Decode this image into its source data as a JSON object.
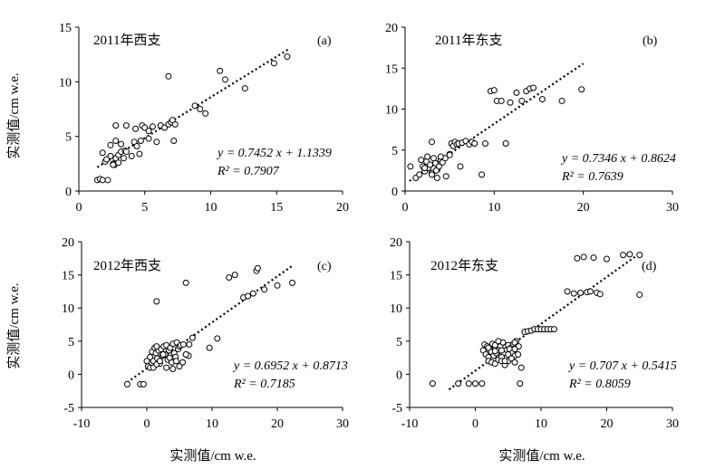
{
  "figure": {
    "ylabel": "实测值/cm w.e.",
    "xlabel": "实测值/cm w.e."
  },
  "chart_data": [
    {
      "type": "scatter",
      "panel": "(a)",
      "title": "2011年西支",
      "equation": "y = 0.7452 x + 1.1339",
      "r2_text": "R² = 0.7907",
      "slope": 0.7452,
      "intercept": 1.1339,
      "xlim": [
        0,
        20
      ],
      "ylim": [
        0,
        15
      ],
      "xticks": [
        0,
        5,
        10,
        15,
        20
      ],
      "yticks": [
        0,
        5,
        10,
        15
      ],
      "fit_x": [
        1.4,
        16
      ],
      "x": [
        1.4,
        1.6,
        1.8,
        2.2,
        1.8,
        2.0,
        2.4,
        2.6,
        2.8,
        3.0,
        3.2,
        3.4,
        2.7,
        3.0,
        2.6,
        3.5,
        2.4,
        2.8,
        3.2,
        3.6,
        4.2,
        4.4,
        4.6,
        4.0,
        4.7,
        4.3,
        4.8,
        5.0,
        5.3,
        5.6,
        5.9,
        6.2,
        6.5,
        6.8,
        7.0,
        7.2,
        7.3,
        2.8,
        3.6,
        5.3,
        6.8,
        7.1,
        8.8,
        9.2,
        9.6,
        10.7,
        11.1,
        12.6,
        14.8,
        15.8,
        2.1
      ],
      "y": [
        1.0,
        1.1,
        1.0,
        1.0,
        3.5,
        2.7,
        3.2,
        2.5,
        3.0,
        3.3,
        3.6,
        3.0,
        2.4,
        2.6,
        2.4,
        3.7,
        4.2,
        4.6,
        4.3,
        3.6,
        4.5,
        4.1,
        3.4,
        3.2,
        4.6,
        5.7,
        6.0,
        5.8,
        5.5,
        5.9,
        4.5,
        6.0,
        5.8,
        6.1,
        6.3,
        4.6,
        6.1,
        6.0,
        6.0,
        4.8,
        10.5,
        6.5,
        7.8,
        7.5,
        7.1,
        11.0,
        10.2,
        9.4,
        11.7,
        12.3,
        2.9
      ]
    },
    {
      "type": "scatter",
      "panel": "(b)",
      "title": "2011年东支",
      "equation": "y = 0.7346 x + 0.8624",
      "r2_text": "R² = 0.7639",
      "slope": 0.7346,
      "intercept": 0.8624,
      "xlim": [
        0,
        30
      ],
      "ylim": [
        0,
        20
      ],
      "xticks": [
        0,
        10,
        20,
        30
      ],
      "yticks": [
        0,
        5,
        10,
        15,
        20
      ],
      "fit_x": [
        0.5,
        20
      ],
      "x": [
        0.6,
        1.2,
        1.6,
        1.8,
        2.0,
        2.2,
        2.4,
        2.6,
        2.8,
        3.0,
        3.2,
        3.4,
        3.6,
        3.8,
        4.0,
        2.5,
        3.0,
        3.5,
        4.2,
        4.5,
        5.0,
        5.2,
        5.4,
        5.6,
        5.8,
        6.0,
        6.4,
        6.8,
        7.2,
        7.5,
        7.8,
        3.0,
        4.0,
        5.0,
        2.2,
        3.6,
        6.2,
        8.6,
        9.0,
        9.6,
        10.0,
        10.3,
        10.8,
        11.3,
        11.8,
        12.5,
        13.1,
        13.6,
        14.0,
        14.4,
        15.4,
        17.6,
        19.8,
        4.6
      ],
      "y": [
        3.0,
        1.6,
        2.0,
        3.8,
        3.0,
        2.4,
        3.6,
        2.8,
        3.2,
        2.2,
        4.0,
        3.4,
        2.6,
        3.0,
        3.8,
        4.2,
        2.0,
        2.5,
        3.5,
        4.0,
        4.5,
        5.8,
        5.5,
        6.0,
        5.7,
        5.8,
        5.9,
        6.1,
        5.7,
        6.0,
        5.8,
        6.0,
        4.2,
        4.4,
        2.8,
        1.6,
        3.0,
        2.0,
        5.8,
        12.2,
        12.3,
        11.0,
        11.0,
        5.8,
        10.8,
        12.0,
        11.0,
        12.2,
        12.5,
        12.6,
        11.2,
        11.0,
        12.4,
        1.8
      ]
    },
    {
      "type": "scatter",
      "panel": "(c)",
      "title": "2012年西支",
      "equation": "y = 0.6952 x + 0.8713",
      "r2_text": "R² = 0.7185",
      "slope": 0.6952,
      "intercept": 0.8713,
      "xlim": [
        -10,
        30
      ],
      "ylim": [
        -5,
        20
      ],
      "xticks": [
        -10,
        0,
        10,
        20,
        30
      ],
      "yticks": [
        -5,
        0,
        5,
        10,
        15,
        20
      ],
      "fit_x": [
        -3,
        22.5
      ],
      "x": [
        -3.0,
        -1.0,
        -0.5,
        0.0,
        0.2,
        0.5,
        0.8,
        1.0,
        1.2,
        1.4,
        1.6,
        1.8,
        2.0,
        2.2,
        2.4,
        2.6,
        2.8,
        3.0,
        3.2,
        3.4,
        3.6,
        3.8,
        4.0,
        4.2,
        4.4,
        4.6,
        4.8,
        5.0,
        5.2,
        5.6,
        6.0,
        6.4,
        7.0,
        0.5,
        1.0,
        1.5,
        2.0,
        3.0,
        4.0,
        5.0,
        6.0,
        1.5,
        2.5,
        3.5,
        4.5,
        5.5,
        6.5,
        1.5,
        6.0,
        9.6,
        10.8,
        12.6,
        13.5,
        14.8,
        15.5,
        16.3,
        16.8,
        17.0,
        18.0,
        20.0,
        22.3
      ],
      "y": [
        -1.5,
        -1.5,
        -1.5,
        2.0,
        1.2,
        2.6,
        3.4,
        2.0,
        4.0,
        3.2,
        2.4,
        3.6,
        1.6,
        3.8,
        2.8,
        4.2,
        3.0,
        4.4,
        2.2,
        3.6,
        4.0,
        1.8,
        4.6,
        3.2,
        2.6,
        4.8,
        3.8,
        4.2,
        4.4,
        4.5,
        3.0,
        2.8,
        5.5,
        1.0,
        1.0,
        1.5,
        2.0,
        1.0,
        0.8,
        1.2,
        3.0,
        4.2,
        3.0,
        2.5,
        2.0,
        1.8,
        4.5,
        11.0,
        13.8,
        4.0,
        5.4,
        14.6,
        15.0,
        11.6,
        11.8,
        12.2,
        15.6,
        16.0,
        12.8,
        13.4,
        13.8
      ]
    },
    {
      "type": "scatter",
      "panel": "(d)",
      "title": "2012年东支",
      "equation": "y = 0.707 x + 0.5415",
      "r2_text": "R² = 0.8059",
      "slope": 0.707,
      "intercept": 0.5415,
      "xlim": [
        -10,
        30
      ],
      "ylim": [
        -5,
        20
      ],
      "xticks": [
        -10,
        0,
        10,
        20,
        30
      ],
      "yticks": [
        -5,
        0,
        5,
        10,
        15,
        20
      ],
      "fit_x": [
        -4,
        25
      ],
      "x": [
        -6.5,
        -2.6,
        -1.0,
        0.0,
        1.0,
        1.4,
        1.8,
        2.2,
        2.6,
        3.0,
        3.4,
        3.8,
        4.2,
        4.6,
        5.0,
        5.4,
        5.8,
        6.2,
        6.6,
        1.2,
        1.6,
        2.0,
        2.4,
        2.8,
        3.2,
        3.6,
        4.0,
        4.4,
        4.8,
        5.2,
        5.6,
        6.0,
        2.0,
        2.5,
        3.0,
        3.5,
        4.0,
        4.5,
        5.0,
        5.5,
        6.0,
        6.5,
        3.0,
        4.0,
        5.0,
        6.0,
        7.0,
        2.0,
        3.0,
        4.0,
        5.0,
        6.0,
        3.5,
        4.5,
        7.5,
        8.0,
        8.5,
        9.0,
        9.5,
        10.0,
        10.5,
        11.0,
        11.5,
        12.0,
        14.0,
        15.0,
        15.5,
        16.0,
        16.5,
        17.0,
        17.5,
        18.0,
        18.5,
        19.0,
        20.0,
        22.5,
        23.5,
        25.0,
        25.0,
        6.8
      ],
      "y": [
        -1.4,
        -1.4,
        -1.4,
        -1.4,
        -1.4,
        4.5,
        4.2,
        3.8,
        4.6,
        4.0,
        3.4,
        4.2,
        4.8,
        3.6,
        4.4,
        4.0,
        4.6,
        5.0,
        4.2,
        3.6,
        3.0,
        2.6,
        3.4,
        2.8,
        3.2,
        3.6,
        2.4,
        3.0,
        2.6,
        3.8,
        3.2,
        2.8,
        2.0,
        1.8,
        1.6,
        2.2,
        2.6,
        1.4,
        2.0,
        2.4,
        1.8,
        3.0,
        3.5,
        2.0,
        3.0,
        3.8,
        1.0,
        4.0,
        4.4,
        3.6,
        3.0,
        4.8,
        5.0,
        2.0,
        6.4,
        6.5,
        6.6,
        6.8,
        6.8,
        6.8,
        6.8,
        6.8,
        6.8,
        6.8,
        12.5,
        12.2,
        17.5,
        12.3,
        17.7,
        12.4,
        12.5,
        17.6,
        12.3,
        12.1,
        17.4,
        18.0,
        18.1,
        18.0,
        12.0,
        -1.4
      ]
    }
  ]
}
